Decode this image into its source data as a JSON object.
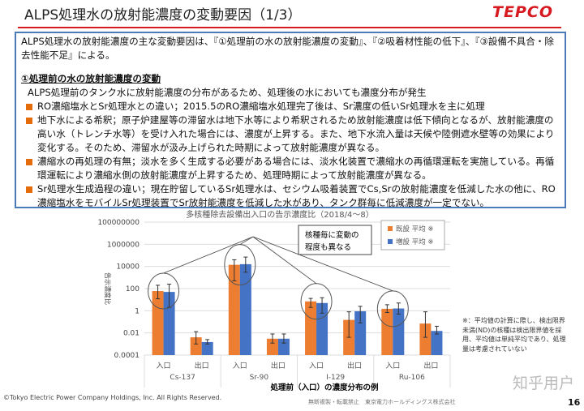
{
  "header": {
    "title": "ALPS処理水の放射能濃度の変動要因（1/3）",
    "logo": "TEPCO"
  },
  "box": {
    "intro": "ALPS処理水の放射能濃度の主な変動要因は、『①処理前の水の放射能濃度の変動』、『②吸着材性能の低下』、『③設備不具合・除去性能不足』による。",
    "heading": "①処理前の水の放射能濃度の変動",
    "lead": "ALPS処理前のタンク水に放射能濃度の分布があるため、処理後の水においても濃度分布が発生",
    "bullets": [
      "RO濃縮塩水とSr処理水との違い；2015.5のRO濃縮塩水処理完了後は、Sr濃度の低いSr処理水を主に処理",
      "地下水による希釈；原子炉建屋等の滞留水は地下水等により希釈されるため放射能濃度は低下傾向となるが、放射能濃度の高い水（トレンチ水等）を受け入れた場合には、濃度が上昇する。また、地下水流入量は天候や陸側遮水壁等の効果により変化する。そのため、滞留水が汲み上げられた時期によって放射能濃度が異なる。",
      "濃縮水の再処理の有無；淡水を多く生成する必要がある場合には、淡水化装置で濃縮水の再循環運転を実施している。再循環運転により濃縮水側の放射能濃度が上昇するため、処理時期によって放射能濃度が異なる。",
      "Sr処理水生成過程の違い；現在貯留しているSr処理水は、セシウム吸着装置でCs,Srの放射能濃度を低減した水の他に、RO濃縮塩水をモバイルSr処理装置でSr放射能濃度を低減した水があり、タンク群毎に低減濃度が一定でない。"
    ]
  },
  "chart_data": {
    "type": "bar",
    "title": "多核種除去設備出入口の告示濃度比（2018/4～8）",
    "ylabel": "告示濃度比",
    "yscale": "log",
    "ylim": [
      0.0001,
      100000000
    ],
    "yticks": [
      "100000000",
      "1000000",
      "10000",
      "100",
      "1",
      "0.01",
      "0.0001"
    ],
    "groups": [
      "Cs-137",
      "Sr-90",
      "I-129",
      "Ru-106"
    ],
    "categories": [
      "入口",
      "出口",
      "入口",
      "出口",
      "入口",
      "出口",
      "入口",
      "出口"
    ],
    "series": [
      {
        "name": "既設 平均 ※",
        "color": "#ed7d31",
        "values": [
          60,
          0.004,
          14000,
          0.003,
          7,
          0.15,
          1.5,
          0.07
        ],
        "err_low": [
          12,
          0.001,
          500,
          0.0012,
          2,
          0.004,
          0.7,
          0.004
        ],
        "err_high": [
          200,
          0.013,
          40000,
          0.008,
          13,
          0.8,
          3.5,
          0.8
        ]
      },
      {
        "name": "増設 平均 ※",
        "color": "#4472c4",
        "values": [
          50,
          0.0015,
          16000,
          0.003,
          5,
          0.9,
          1.6,
          0.015
        ],
        "err_low": [
          2,
          0.001,
          3000,
          0.0012,
          0.6,
          0.08,
          0.5,
          0.008
        ],
        "err_high": [
          250,
          0.0025,
          70000,
          0.008,
          15,
          2.5,
          5,
          0.04
        ]
      }
    ],
    "callout": "核種毎に変動の程度も異なる",
    "caption": "処理前（入口）の濃度分布の例",
    "legend_position": "top-right"
  },
  "note": "※：平均値の計算に際し、検出限界未満(ND)の核種は検出限界値を採用、平均値は単純平均であり、処理量は考慮されていない",
  "footer": {
    "copyright": "©Tokyo Electric Power Company Holdings, Inc. All Rights Reserved.",
    "sub": "無断複製・転載禁止　東京電力ホールディングス株式会社",
    "page": "16",
    "watermark": "知乎用户"
  }
}
